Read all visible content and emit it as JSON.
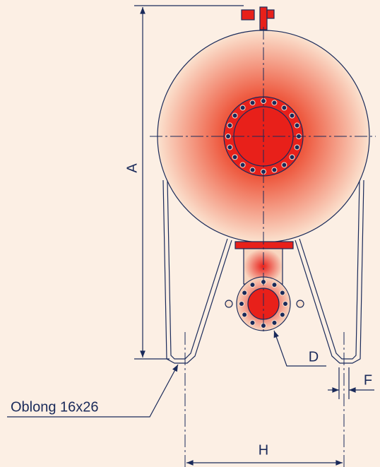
{
  "labels": {
    "a": "A",
    "d": "D",
    "f": "F",
    "h": "H",
    "oblong": "Oblong 16x26"
  }
}
